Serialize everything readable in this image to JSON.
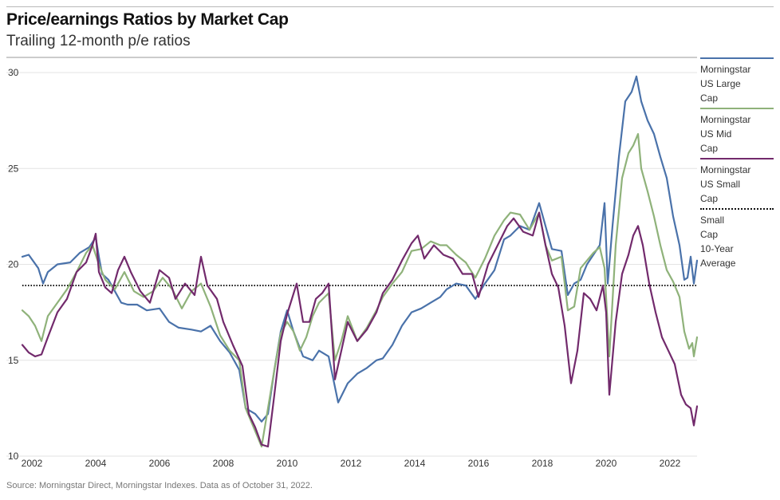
{
  "header": {
    "title": "Price/earnings Ratios by Market Cap",
    "subtitle": "Trailing 12-month p/e ratios"
  },
  "source": "Source: Morningstar Direct, Morningstar Indexes. Data as of October 31, 2022.",
  "colors": {
    "large": "#4a72aa",
    "mid": "#8fb27a",
    "small": "#722a6c",
    "average": "#111111",
    "grid": "#e3e3e3"
  },
  "legend": [
    {
      "key": "large",
      "label_lines": [
        "Morningstar",
        "US Large",
        "Cap"
      ]
    },
    {
      "key": "mid",
      "label_lines": [
        "Morningstar",
        "US Mid",
        "Cap"
      ]
    },
    {
      "key": "small",
      "label_lines": [
        "Morningstar",
        "US Small",
        "Cap"
      ]
    },
    {
      "key": "average",
      "label_lines": [
        "Small",
        "Cap",
        "10-Year",
        "Average"
      ]
    }
  ],
  "chart_data": {
    "type": "line",
    "title": "Price/earnings Ratios by Market Cap",
    "subtitle": "Trailing 12-month p/e ratios",
    "xlim": [
      2001.7,
      2022.85
    ],
    "ylim": [
      10,
      30.5
    ],
    "x_ticks": [
      2002,
      2004,
      2006,
      2008,
      2010,
      2012,
      2014,
      2016,
      2018,
      2020,
      2022
    ],
    "y_ticks": [
      10,
      15,
      20,
      25,
      30
    ],
    "y_tick_labels": [
      "10",
      "15",
      "20",
      "25",
      "30"
    ],
    "grid": "horizontal",
    "legend_position": "right",
    "series": [
      {
        "name": "Morningstar US Large Cap",
        "key": "large",
        "points": [
          [
            2001.7,
            20.4
          ],
          [
            2001.9,
            20.5
          ],
          [
            2002.2,
            19.8
          ],
          [
            2002.35,
            19.0
          ],
          [
            2002.5,
            19.6
          ],
          [
            2002.8,
            20.0
          ],
          [
            2003.2,
            20.1
          ],
          [
            2003.5,
            20.6
          ],
          [
            2003.8,
            20.9
          ],
          [
            2004.0,
            21.4
          ],
          [
            2004.1,
            20.4
          ],
          [
            2004.2,
            19.5
          ],
          [
            2004.4,
            19.2
          ],
          [
            2004.6,
            18.6
          ],
          [
            2004.8,
            18.0
          ],
          [
            2005.0,
            17.9
          ],
          [
            2005.3,
            17.9
          ],
          [
            2005.6,
            17.6
          ],
          [
            2006.0,
            17.7
          ],
          [
            2006.3,
            17.0
          ],
          [
            2006.6,
            16.7
          ],
          [
            2007.0,
            16.6
          ],
          [
            2007.3,
            16.5
          ],
          [
            2007.6,
            16.8
          ],
          [
            2007.9,
            16.0
          ],
          [
            2008.2,
            15.4
          ],
          [
            2008.5,
            14.5
          ],
          [
            2008.7,
            12.5
          ],
          [
            2009.0,
            12.2
          ],
          [
            2009.2,
            11.8
          ],
          [
            2009.4,
            12.2
          ],
          [
            2009.6,
            14.5
          ],
          [
            2009.8,
            16.5
          ],
          [
            2010.0,
            17.6
          ],
          [
            2010.2,
            16.5
          ],
          [
            2010.5,
            15.2
          ],
          [
            2010.8,
            15.0
          ],
          [
            2011.0,
            15.5
          ],
          [
            2011.3,
            15.2
          ],
          [
            2011.6,
            12.8
          ],
          [
            2011.9,
            13.8
          ],
          [
            2012.2,
            14.3
          ],
          [
            2012.5,
            14.6
          ],
          [
            2012.8,
            15.0
          ],
          [
            2013.0,
            15.1
          ],
          [
            2013.3,
            15.8
          ],
          [
            2013.6,
            16.8
          ],
          [
            2013.9,
            17.5
          ],
          [
            2014.2,
            17.7
          ],
          [
            2014.5,
            18.0
          ],
          [
            2014.8,
            18.3
          ],
          [
            2015.0,
            18.7
          ],
          [
            2015.3,
            19.0
          ],
          [
            2015.6,
            18.9
          ],
          [
            2015.9,
            18.2
          ],
          [
            2016.2,
            19.0
          ],
          [
            2016.5,
            19.7
          ],
          [
            2016.8,
            21.3
          ],
          [
            2017.0,
            21.5
          ],
          [
            2017.3,
            22.0
          ],
          [
            2017.6,
            21.8
          ],
          [
            2017.9,
            23.2
          ],
          [
            2018.1,
            22.0
          ],
          [
            2018.3,
            20.8
          ],
          [
            2018.6,
            20.7
          ],
          [
            2018.8,
            18.4
          ],
          [
            2019.0,
            19.0
          ],
          [
            2019.2,
            19.2
          ],
          [
            2019.4,
            20.0
          ],
          [
            2019.6,
            20.5
          ],
          [
            2019.8,
            21.0
          ],
          [
            2019.95,
            23.2
          ],
          [
            2020.05,
            19.0
          ],
          [
            2020.2,
            22.0
          ],
          [
            2020.4,
            25.6
          ],
          [
            2020.6,
            28.5
          ],
          [
            2020.8,
            29.0
          ],
          [
            2020.95,
            29.8
          ],
          [
            2021.1,
            28.5
          ],
          [
            2021.3,
            27.5
          ],
          [
            2021.5,
            26.8
          ],
          [
            2021.7,
            25.6
          ],
          [
            2021.9,
            24.5
          ],
          [
            2022.1,
            22.5
          ],
          [
            2022.3,
            21.0
          ],
          [
            2022.45,
            19.2
          ],
          [
            2022.55,
            19.3
          ],
          [
            2022.65,
            20.4
          ],
          [
            2022.75,
            19.0
          ],
          [
            2022.85,
            20.2
          ]
        ]
      },
      {
        "name": "Morningstar US Mid Cap",
        "key": "mid",
        "points": [
          [
            2001.7,
            17.6
          ],
          [
            2001.9,
            17.3
          ],
          [
            2002.1,
            16.8
          ],
          [
            2002.3,
            16.0
          ],
          [
            2002.5,
            17.3
          ],
          [
            2002.8,
            18.0
          ],
          [
            2003.1,
            18.7
          ],
          [
            2003.4,
            19.6
          ],
          [
            2003.7,
            20.6
          ],
          [
            2003.9,
            21.0
          ],
          [
            2004.1,
            20.0
          ],
          [
            2004.3,
            19.2
          ],
          [
            2004.6,
            18.7
          ],
          [
            2004.9,
            19.6
          ],
          [
            2005.2,
            18.6
          ],
          [
            2005.5,
            18.3
          ],
          [
            2005.8,
            18.6
          ],
          [
            2006.1,
            19.3
          ],
          [
            2006.4,
            18.7
          ],
          [
            2006.7,
            17.7
          ],
          [
            2007.0,
            18.6
          ],
          [
            2007.3,
            19.0
          ],
          [
            2007.6,
            17.8
          ],
          [
            2007.9,
            16.3
          ],
          [
            2008.2,
            15.5
          ],
          [
            2008.5,
            15.0
          ],
          [
            2008.7,
            12.5
          ],
          [
            2009.0,
            11.3
          ],
          [
            2009.2,
            10.5
          ],
          [
            2009.4,
            12.5
          ],
          [
            2009.6,
            14.5
          ],
          [
            2009.8,
            16.4
          ],
          [
            2010.0,
            17.0
          ],
          [
            2010.2,
            16.5
          ],
          [
            2010.4,
            15.5
          ],
          [
            2010.6,
            16.2
          ],
          [
            2010.8,
            17.3
          ],
          [
            2011.0,
            18.0
          ],
          [
            2011.3,
            18.5
          ],
          [
            2011.5,
            15.0
          ],
          [
            2011.7,
            16.0
          ],
          [
            2011.9,
            17.3
          ],
          [
            2012.2,
            16.0
          ],
          [
            2012.5,
            16.7
          ],
          [
            2012.8,
            17.6
          ],
          [
            2013.0,
            18.3
          ],
          [
            2013.3,
            19.0
          ],
          [
            2013.6,
            19.6
          ],
          [
            2013.9,
            20.7
          ],
          [
            2014.2,
            20.8
          ],
          [
            2014.5,
            21.2
          ],
          [
            2014.8,
            21.0
          ],
          [
            2015.0,
            21.0
          ],
          [
            2015.3,
            20.5
          ],
          [
            2015.6,
            20.1
          ],
          [
            2015.9,
            19.3
          ],
          [
            2016.2,
            20.3
          ],
          [
            2016.5,
            21.5
          ],
          [
            2016.8,
            22.3
          ],
          [
            2017.0,
            22.7
          ],
          [
            2017.3,
            22.6
          ],
          [
            2017.6,
            21.8
          ],
          [
            2017.9,
            22.7
          ],
          [
            2018.1,
            21.0
          ],
          [
            2018.3,
            20.2
          ],
          [
            2018.6,
            20.4
          ],
          [
            2018.8,
            17.6
          ],
          [
            2019.0,
            17.8
          ],
          [
            2019.2,
            19.8
          ],
          [
            2019.4,
            20.2
          ],
          [
            2019.6,
            20.6
          ],
          [
            2019.8,
            20.9
          ],
          [
            2019.95,
            19.8
          ],
          [
            2020.1,
            15.2
          ],
          [
            2020.3,
            21.0
          ],
          [
            2020.5,
            24.5
          ],
          [
            2020.7,
            25.8
          ],
          [
            2020.85,
            26.2
          ],
          [
            2021.0,
            26.8
          ],
          [
            2021.1,
            25.0
          ],
          [
            2021.3,
            23.8
          ],
          [
            2021.5,
            22.5
          ],
          [
            2021.7,
            21.0
          ],
          [
            2021.9,
            19.7
          ],
          [
            2022.1,
            19.1
          ],
          [
            2022.3,
            18.3
          ],
          [
            2022.45,
            16.5
          ],
          [
            2022.6,
            15.6
          ],
          [
            2022.7,
            15.9
          ],
          [
            2022.75,
            15.2
          ],
          [
            2022.85,
            16.2
          ]
        ]
      },
      {
        "name": "Morningstar US Small Cap",
        "key": "small",
        "points": [
          [
            2001.7,
            15.8
          ],
          [
            2001.9,
            15.4
          ],
          [
            2002.1,
            15.2
          ],
          [
            2002.3,
            15.3
          ],
          [
            2002.5,
            16.2
          ],
          [
            2002.8,
            17.5
          ],
          [
            2003.1,
            18.2
          ],
          [
            2003.4,
            19.6
          ],
          [
            2003.7,
            20.1
          ],
          [
            2003.9,
            21.0
          ],
          [
            2004.0,
            21.6
          ],
          [
            2004.1,
            19.6
          ],
          [
            2004.3,
            18.8
          ],
          [
            2004.5,
            18.5
          ],
          [
            2004.7,
            19.7
          ],
          [
            2004.9,
            20.4
          ],
          [
            2005.1,
            19.6
          ],
          [
            2005.4,
            18.6
          ],
          [
            2005.7,
            18.0
          ],
          [
            2006.0,
            19.7
          ],
          [
            2006.3,
            19.3
          ],
          [
            2006.5,
            18.2
          ],
          [
            2006.8,
            19.0
          ],
          [
            2007.1,
            18.4
          ],
          [
            2007.3,
            20.4
          ],
          [
            2007.5,
            18.9
          ],
          [
            2007.8,
            18.2
          ],
          [
            2008.0,
            17.0
          ],
          [
            2008.3,
            15.8
          ],
          [
            2008.6,
            14.7
          ],
          [
            2008.8,
            12.2
          ],
          [
            2009.0,
            11.5
          ],
          [
            2009.2,
            10.6
          ],
          [
            2009.4,
            10.5
          ],
          [
            2009.6,
            13.2
          ],
          [
            2009.8,
            16.0
          ],
          [
            2010.0,
            17.4
          ],
          [
            2010.3,
            19.0
          ],
          [
            2010.5,
            17.0
          ],
          [
            2010.7,
            17.0
          ],
          [
            2010.9,
            18.2
          ],
          [
            2011.1,
            18.5
          ],
          [
            2011.3,
            19.0
          ],
          [
            2011.5,
            14.0
          ],
          [
            2011.7,
            15.5
          ],
          [
            2011.9,
            17.0
          ],
          [
            2012.2,
            16.0
          ],
          [
            2012.5,
            16.6
          ],
          [
            2012.8,
            17.5
          ],
          [
            2013.0,
            18.5
          ],
          [
            2013.3,
            19.2
          ],
          [
            2013.6,
            20.2
          ],
          [
            2013.9,
            21.1
          ],
          [
            2014.1,
            21.5
          ],
          [
            2014.3,
            20.3
          ],
          [
            2014.6,
            21.0
          ],
          [
            2014.9,
            20.5
          ],
          [
            2015.2,
            20.3
          ],
          [
            2015.5,
            19.5
          ],
          [
            2015.8,
            19.5
          ],
          [
            2016.0,
            18.3
          ],
          [
            2016.3,
            20.0
          ],
          [
            2016.6,
            21.0
          ],
          [
            2016.9,
            22.0
          ],
          [
            2017.1,
            22.4
          ],
          [
            2017.4,
            21.7
          ],
          [
            2017.7,
            21.5
          ],
          [
            2017.9,
            22.7
          ],
          [
            2018.1,
            21.0
          ],
          [
            2018.3,
            19.5
          ],
          [
            2018.5,
            18.8
          ],
          [
            2018.7,
            16.8
          ],
          [
            2018.9,
            13.8
          ],
          [
            2019.1,
            15.5
          ],
          [
            2019.3,
            18.5
          ],
          [
            2019.5,
            18.2
          ],
          [
            2019.7,
            17.6
          ],
          [
            2019.9,
            18.9
          ],
          [
            2020.0,
            17.5
          ],
          [
            2020.1,
            13.2
          ],
          [
            2020.3,
            17.0
          ],
          [
            2020.5,
            19.5
          ],
          [
            2020.7,
            20.5
          ],
          [
            2020.85,
            21.5
          ],
          [
            2021.0,
            22.0
          ],
          [
            2021.15,
            21.0
          ],
          [
            2021.35,
            19.0
          ],
          [
            2021.55,
            17.5
          ],
          [
            2021.75,
            16.2
          ],
          [
            2021.95,
            15.5
          ],
          [
            2022.15,
            14.8
          ],
          [
            2022.35,
            13.2
          ],
          [
            2022.5,
            12.7
          ],
          [
            2022.65,
            12.5
          ],
          [
            2022.75,
            11.6
          ],
          [
            2022.85,
            12.6
          ]
        ]
      },
      {
        "name": "Small Cap 10-Year Average",
        "key": "average",
        "style": "dotted",
        "points": [
          [
            2001.7,
            18.9
          ],
          [
            2022.85,
            18.9
          ]
        ]
      }
    ]
  }
}
